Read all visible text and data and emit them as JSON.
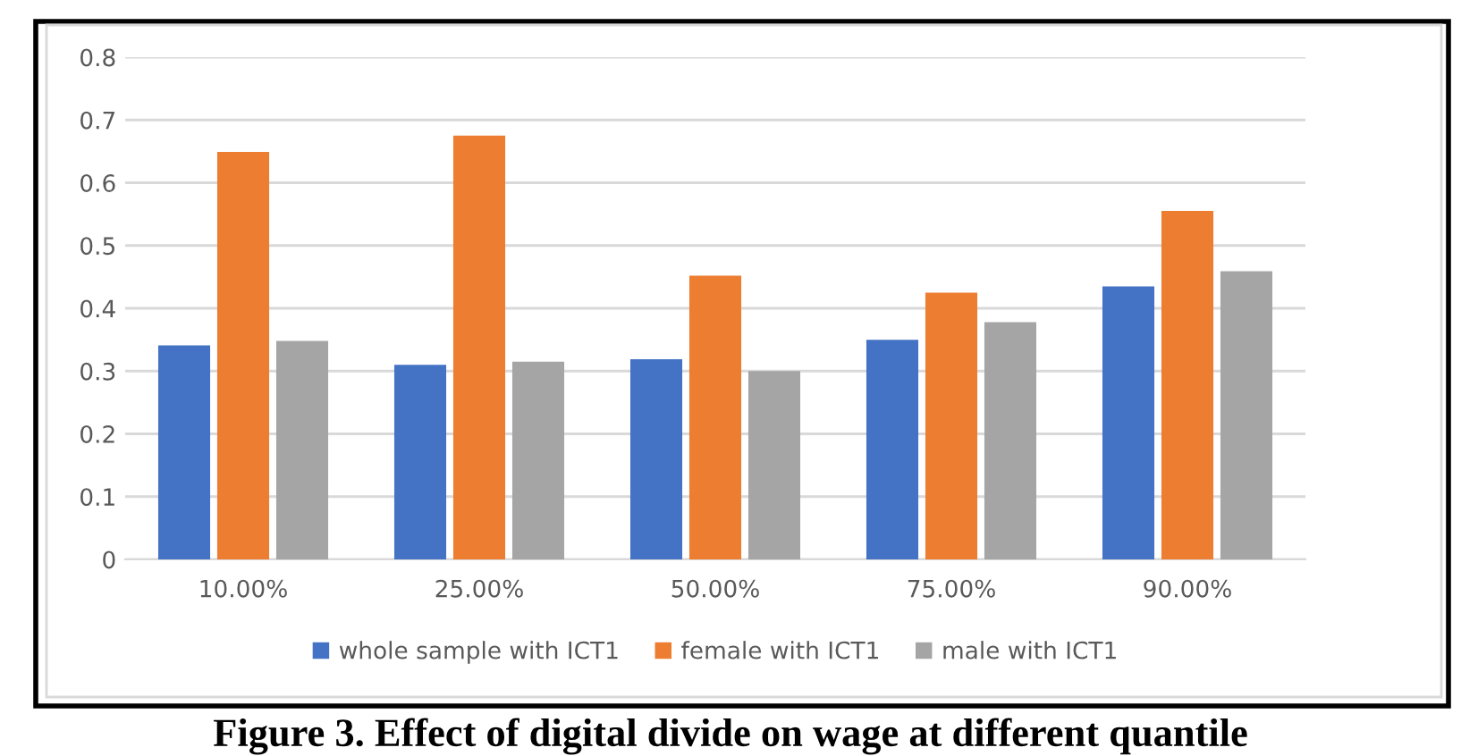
{
  "chart_data": {
    "type": "bar",
    "title": "Figure 3. Effect of digital divide on wage at different quantile",
    "categories": [
      "10.00%",
      "25.00%",
      "50.00%",
      "75.00%",
      "90.00%"
    ],
    "series": [
      {
        "name": "whole sample with ICT1",
        "color": "#4472c4",
        "values": [
          0.341,
          0.31,
          0.319,
          0.35,
          0.435
        ]
      },
      {
        "name": "female with ICT1",
        "color": "#ed7d31",
        "values": [
          0.649,
          0.675,
          0.452,
          0.425,
          0.555
        ]
      },
      {
        "name": "male with ICT1",
        "color": "#a5a5a5",
        "values": [
          0.348,
          0.315,
          0.3,
          0.378,
          0.459
        ]
      }
    ],
    "ylim": [
      0,
      0.8
    ],
    "yticks": [
      0,
      0.1,
      0.2,
      0.3,
      0.4,
      0.5,
      0.6,
      0.7,
      0.8
    ],
    "grid": "y",
    "legend": "bottom"
  }
}
